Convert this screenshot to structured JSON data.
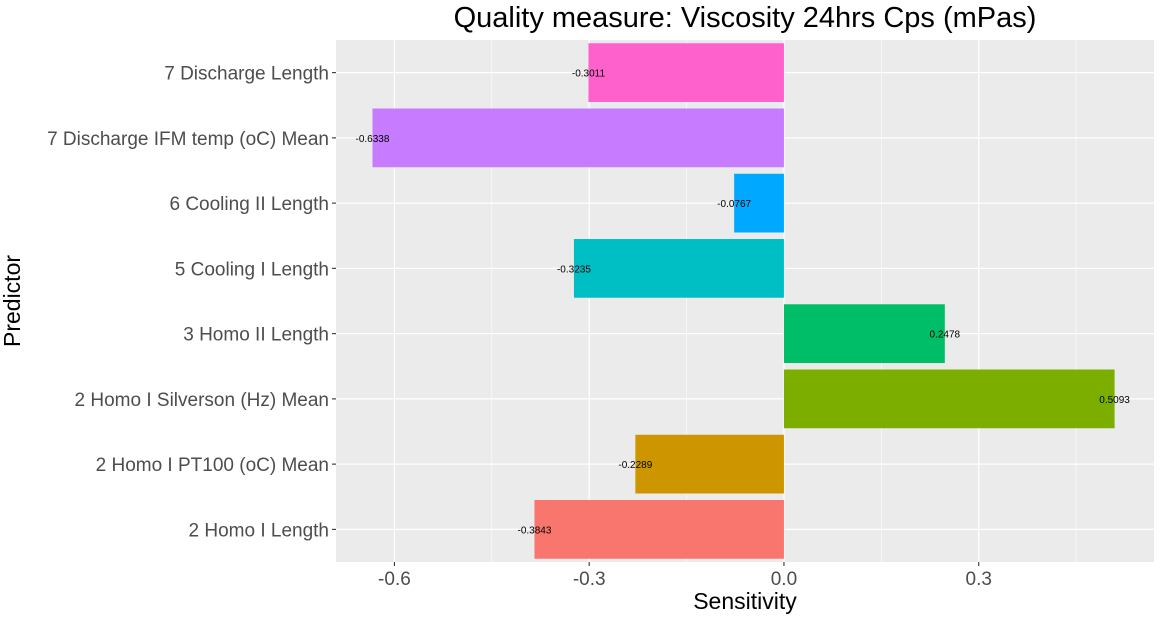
{
  "chart_data": {
    "type": "bar",
    "orientation": "horizontal",
    "title": "Quality measure: Viscosity 24hrs Cps (mPas)",
    "xlabel": "Sensitivity",
    "ylabel": "Predictor",
    "xlim": [
      -0.69,
      0.57
    ],
    "x_ticks": [
      -0.6,
      -0.3,
      0.0,
      0.3
    ],
    "x_tick_labels": [
      "-0.6",
      "-0.3",
      "0.0",
      "0.3"
    ],
    "grid": true,
    "legend": "none",
    "bars": [
      {
        "category": "7 Discharge Length",
        "value": -0.3011,
        "label": "-0.3011",
        "color": "#FF61CC"
      },
      {
        "category": "7 Discharge IFM temp (oC) Mean",
        "value": -0.6338,
        "label": "-0.6338",
        "color": "#C77CFF"
      },
      {
        "category": "6 Cooling II Length",
        "value": -0.0767,
        "label": "-0.0767",
        "color": "#00A9FF"
      },
      {
        "category": "5 Cooling I Length",
        "value": -0.3235,
        "label": "-0.3235",
        "color": "#00BFC4"
      },
      {
        "category": "3 Homo II Length",
        "value": 0.2478,
        "label": "0.2478",
        "color": "#00BE67"
      },
      {
        "category": "2 Homo I Silverson (Hz) Mean",
        "value": 0.5093,
        "label": "0.5093",
        "color": "#7CAE00"
      },
      {
        "category": "2 Homo I PT100 (oC) Mean",
        "value": -0.2289,
        "label": "-0.2289",
        "color": "#CD9600"
      },
      {
        "category": "2 Homo I Length",
        "value": -0.3843,
        "label": "-0.3843",
        "color": "#F8766D"
      }
    ]
  }
}
